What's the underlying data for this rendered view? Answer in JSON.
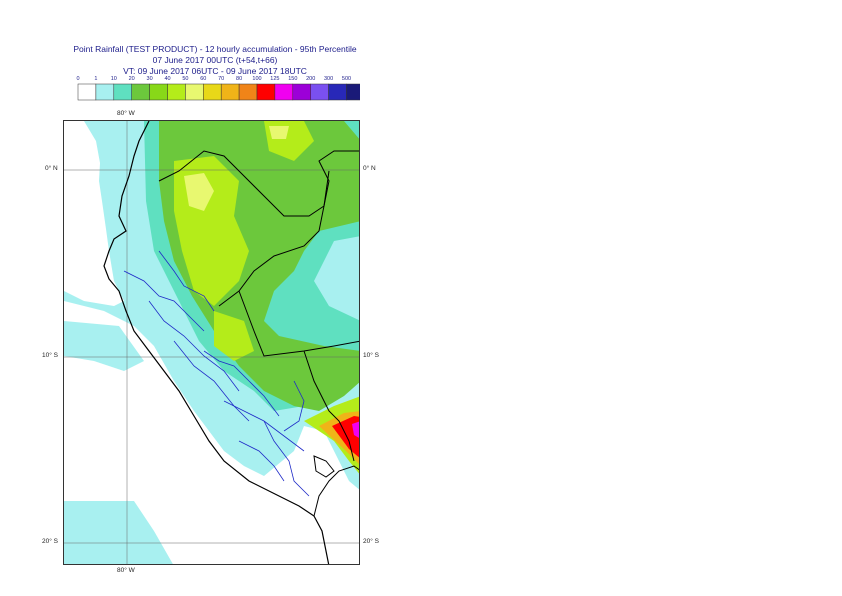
{
  "header": {
    "title_line1": "Point Rainfall (TEST PRODUCT) - 12 hourly accumulation - 95th Percentile",
    "title_line2": "07 June 2017 00UTC (t+54,t+66)",
    "title_line3": "VT: 09 June 2017 06UTC - 09 June 2017 18UTC"
  },
  "legend": {
    "ticks": [
      "0",
      "1",
      "10",
      "20",
      "30",
      "40",
      "50",
      "60",
      "70",
      "80",
      "100",
      "125",
      "150",
      "200",
      "300",
      "500"
    ],
    "colors": [
      "#ffffff",
      "#a8f0f0",
      "#5fe0c0",
      "#6cc83c",
      "#88d818",
      "#b4ec1a",
      "#e8f870",
      "#e8d818",
      "#f0b418",
      "#f08418",
      "#ff0000",
      "#f000f0",
      "#9c00d8",
      "#7a50f0",
      "#2828b8",
      "#1a1a78",
      "#0c0c48"
    ]
  },
  "map": {
    "labels": {
      "lon_top": "80° W",
      "lon_bottom": "80° W",
      "lat0_left": "0° N",
      "lat0_right": "0° N",
      "lat10_left": "10° S",
      "lat10_right": "10° S",
      "lat20_left": "20° S",
      "lat20_right": "20° S"
    },
    "colors": {
      "ocean_low": "#a8f0f0",
      "teal": "#5fe0c0",
      "green": "#6cc83c",
      "lime": "#b4ec1a",
      "yellow": "#e8f870",
      "orange": "#f0b418",
      "red": "#ff0000",
      "magenta": "#f000f0",
      "border": "#000000",
      "region_border": "#1f2bc8"
    }
  }
}
